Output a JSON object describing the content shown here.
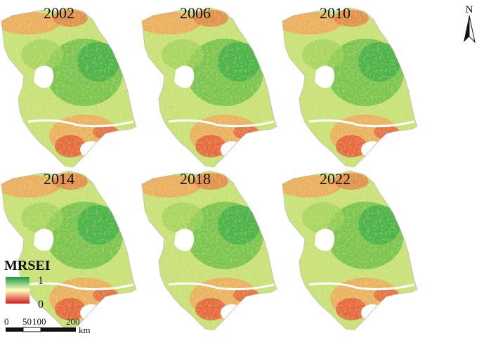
{
  "panels": [
    {
      "year": "2002"
    },
    {
      "year": "2006"
    },
    {
      "year": "2010"
    },
    {
      "year": "2014"
    },
    {
      "year": "2018"
    },
    {
      "year": "2022"
    }
  ],
  "legend": {
    "title": "MRSEI",
    "max_label": "1",
    "min_label": "0",
    "color_high": "#1a9641",
    "color_mid": "#ffffbf",
    "color_low": "#d7191c"
  },
  "scalebar": {
    "ticks": [
      "0",
      "50",
      "100",
      "200"
    ],
    "unit": "km"
  },
  "north_arrow": {
    "label": "N",
    "icon": "north-arrow-icon"
  },
  "colors": {
    "water": "#ffffff",
    "land_base": "#c8e27a",
    "urban_red": "#d7191c",
    "orange": "#f4a259",
    "green": "#3fae49"
  }
}
